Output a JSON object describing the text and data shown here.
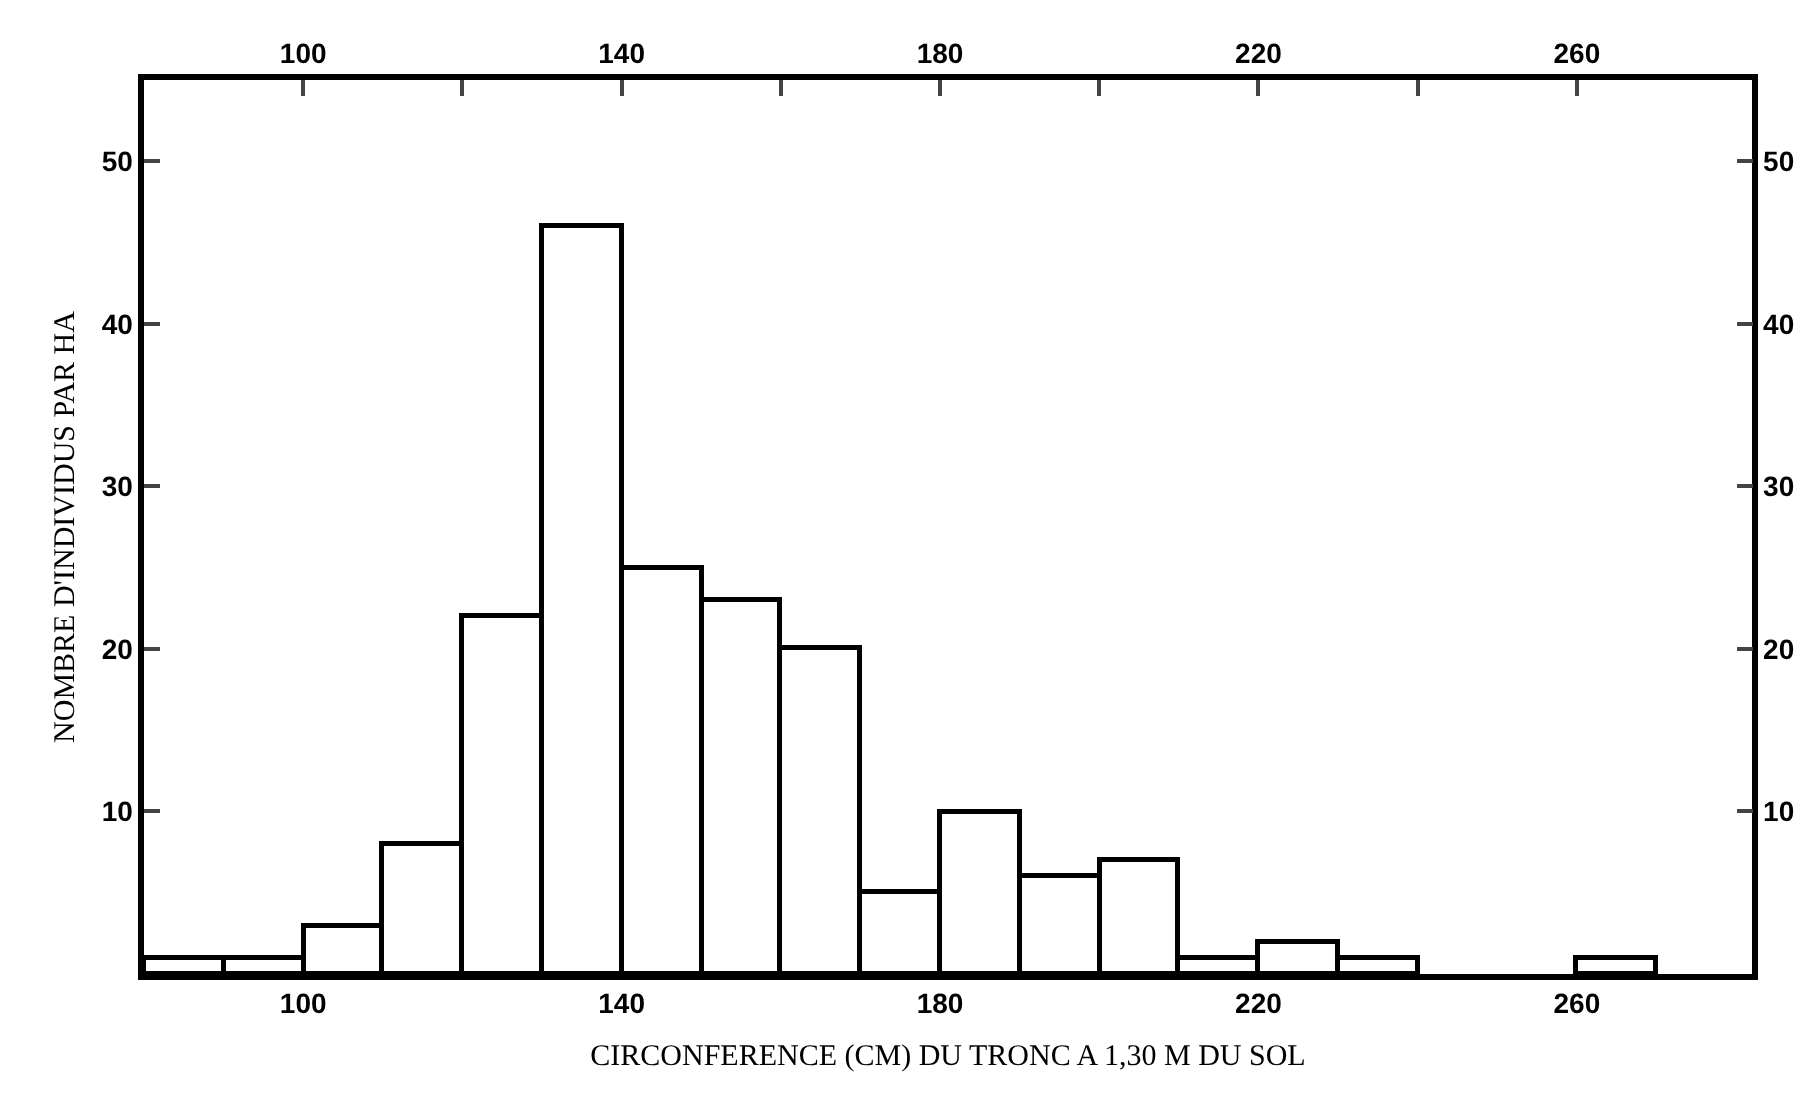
{
  "chart_data": {
    "type": "histogram",
    "xlabel": "CIRCONFERENCE (CM) DU TRONC A 1,30 M DU SOL",
    "ylabel": "NOMBRE D'INDIVIDUS PAR HA",
    "bins": [
      80,
      90,
      100,
      110,
      120,
      130,
      140,
      150,
      160,
      170,
      180,
      190,
      200,
      210,
      220,
      230,
      240,
      250,
      260,
      270
    ],
    "values": [
      1,
      1,
      3,
      8,
      22,
      46,
      25,
      23,
      20,
      5,
      10,
      6,
      7,
      1,
      2,
      1,
      0,
      0,
      1
    ],
    "color": "#ffffff",
    "xlim": [
      80,
      282
    ],
    "xticks": [
      100,
      140,
      180,
      220,
      260
    ],
    "x2lim": [
      80,
      282
    ],
    "x2ticks": [
      100,
      {
        "value": 120,
        "label": null
      },
      140,
      {
        "value": 160,
        "label": null
      },
      180,
      {
        "value": 200,
        "label": null
      },
      220,
      {
        "value": 240,
        "label": null
      },
      260
    ],
    "ylim": [
      0,
      55
    ],
    "yticks": [
      10,
      20,
      30,
      40,
      50
    ],
    "y2lim": [
      0,
      55
    ],
    "y2ticks": [
      10,
      20,
      30,
      40,
      50
    ],
    "grid": false
  }
}
